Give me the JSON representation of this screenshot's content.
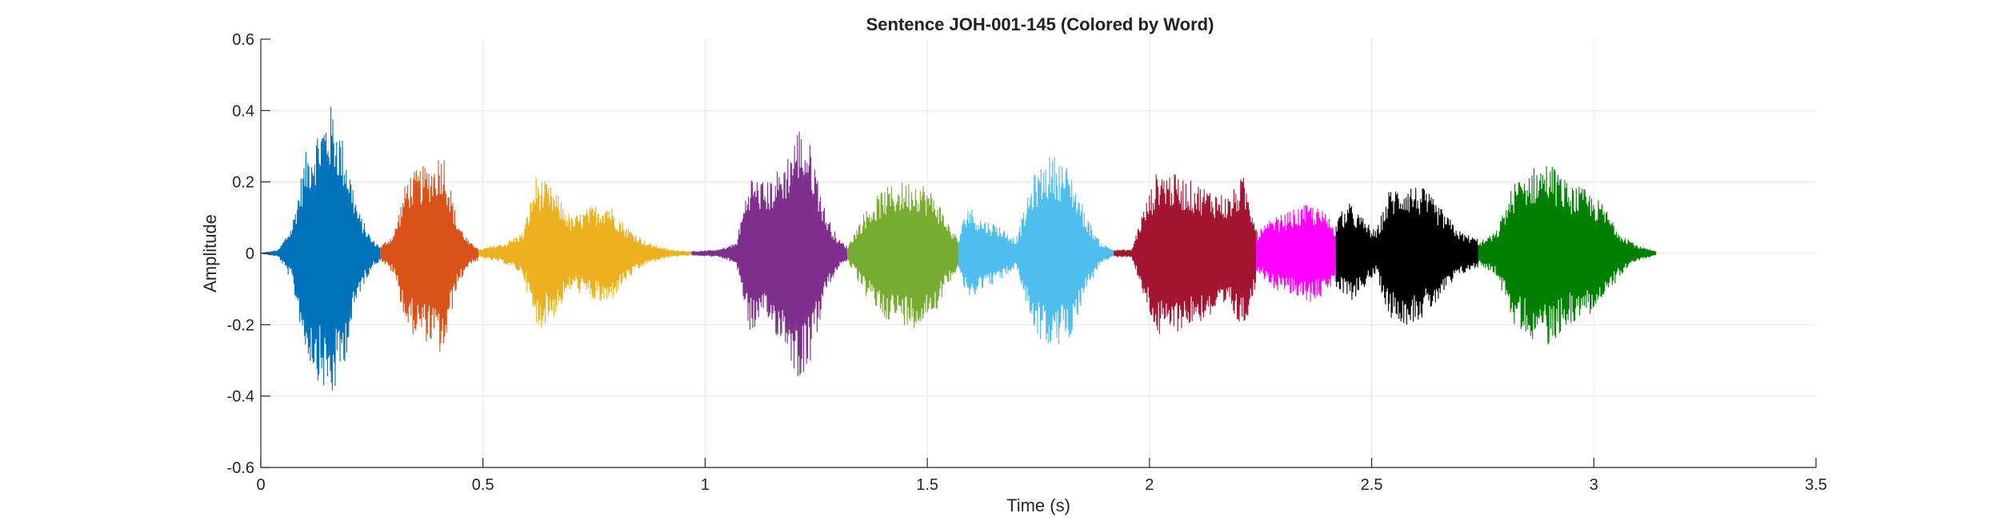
{
  "chart_data": {
    "type": "line",
    "title": "Sentence JOH-001-145 (Colored by Word)",
    "xlabel": "Time (s)",
    "ylabel": "Amplitude",
    "xlim": [
      0,
      3.5
    ],
    "ylim": [
      -0.6,
      0.6
    ],
    "x_ticks": [
      0,
      0.5,
      1,
      1.5,
      2,
      2.5,
      3,
      3.5
    ],
    "x_tick_labels": [
      "0",
      "0.5",
      "1",
      "1.5",
      "2",
      "2.5",
      "3",
      "3.5"
    ],
    "y_ticks": [
      -0.6,
      -0.4,
      -0.2,
      0,
      0.2,
      0.4,
      0.6
    ],
    "y_tick_labels": [
      "-0.6",
      "-0.4",
      "-0.2",
      "0",
      "0.2",
      "0.4",
      "0.6"
    ],
    "grid": true,
    "legend": false,
    "series": [
      {
        "color": "#0072BD",
        "start": 0.0,
        "end": 0.27,
        "envelope": [
          [
            0.0,
            0.0
          ],
          [
            0.04,
            0.01
          ],
          [
            0.07,
            0.08
          ],
          [
            0.1,
            0.28
          ],
          [
            0.13,
            0.36
          ],
          [
            0.16,
            0.42
          ],
          [
            0.19,
            0.3
          ],
          [
            0.22,
            0.12
          ],
          [
            0.25,
            0.04
          ],
          [
            0.27,
            0.02
          ]
        ]
      },
      {
        "color": "#D95319",
        "start": 0.27,
        "end": 0.49,
        "envelope": [
          [
            0.27,
            0.02
          ],
          [
            0.3,
            0.06
          ],
          [
            0.33,
            0.22
          ],
          [
            0.36,
            0.24
          ],
          [
            0.39,
            0.26
          ],
          [
            0.41,
            0.3
          ],
          [
            0.44,
            0.1
          ],
          [
            0.47,
            0.03
          ],
          [
            0.49,
            0.02
          ]
        ]
      },
      {
        "color": "#EDB120",
        "start": 0.49,
        "end": 0.97,
        "envelope": [
          [
            0.49,
            0.01
          ],
          [
            0.55,
            0.03
          ],
          [
            0.59,
            0.06
          ],
          [
            0.62,
            0.22
          ],
          [
            0.66,
            0.18
          ],
          [
            0.7,
            0.1
          ],
          [
            0.74,
            0.13
          ],
          [
            0.78,
            0.15
          ],
          [
            0.82,
            0.08
          ],
          [
            0.87,
            0.03
          ],
          [
            0.92,
            0.01
          ],
          [
            0.97,
            0.005
          ]
        ]
      },
      {
        "color": "#7E2F8E",
        "start": 0.97,
        "end": 1.32,
        "envelope": [
          [
            0.97,
            0.005
          ],
          [
            1.03,
            0.01
          ],
          [
            1.07,
            0.03
          ],
          [
            1.1,
            0.22
          ],
          [
            1.14,
            0.2
          ],
          [
            1.18,
            0.26
          ],
          [
            1.21,
            0.36
          ],
          [
            1.24,
            0.3
          ],
          [
            1.27,
            0.12
          ],
          [
            1.3,
            0.04
          ],
          [
            1.32,
            0.02
          ]
        ]
      },
      {
        "color": "#77AC30",
        "start": 1.32,
        "end": 1.57,
        "envelope": [
          [
            1.32,
            0.02
          ],
          [
            1.36,
            0.12
          ],
          [
            1.4,
            0.18
          ],
          [
            1.44,
            0.2
          ],
          [
            1.48,
            0.21
          ],
          [
            1.52,
            0.16
          ],
          [
            1.55,
            0.08
          ],
          [
            1.57,
            0.04
          ]
        ]
      },
      {
        "color": "#4DBEEE",
        "start": 1.57,
        "end": 1.92,
        "envelope": [
          [
            1.57,
            0.04
          ],
          [
            1.59,
            0.14
          ],
          [
            1.62,
            0.1
          ],
          [
            1.66,
            0.08
          ],
          [
            1.7,
            0.04
          ],
          [
            1.74,
            0.22
          ],
          [
            1.78,
            0.28
          ],
          [
            1.82,
            0.24
          ],
          [
            1.86,
            0.1
          ],
          [
            1.89,
            0.03
          ],
          [
            1.92,
            0.01
          ]
        ]
      },
      {
        "color": "#A2142F",
        "start": 1.92,
        "end": 2.24,
        "envelope": [
          [
            1.92,
            0.01
          ],
          [
            1.96,
            0.01
          ],
          [
            1.98,
            0.1
          ],
          [
            2.02,
            0.24
          ],
          [
            2.06,
            0.22
          ],
          [
            2.1,
            0.2
          ],
          [
            2.14,
            0.18
          ],
          [
            2.18,
            0.16
          ],
          [
            2.21,
            0.22
          ],
          [
            2.24,
            0.1
          ]
        ]
      },
      {
        "color": "#FF00FF",
        "start": 2.24,
        "end": 2.42,
        "envelope": [
          [
            2.24,
            0.06
          ],
          [
            2.28,
            0.1
          ],
          [
            2.32,
            0.12
          ],
          [
            2.36,
            0.14
          ],
          [
            2.39,
            0.12
          ],
          [
            2.42,
            0.08
          ]
        ]
      },
      {
        "color": "#000000",
        "start": 2.42,
        "end": 2.74,
        "envelope": [
          [
            2.42,
            0.1
          ],
          [
            2.45,
            0.14
          ],
          [
            2.48,
            0.1
          ],
          [
            2.51,
            0.06
          ],
          [
            2.54,
            0.18
          ],
          [
            2.58,
            0.2
          ],
          [
            2.62,
            0.18
          ],
          [
            2.66,
            0.12
          ],
          [
            2.7,
            0.06
          ],
          [
            2.74,
            0.04
          ]
        ]
      },
      {
        "color": "#008000",
        "start": 2.74,
        "end": 3.14,
        "envelope": [
          [
            2.74,
            0.03
          ],
          [
            2.78,
            0.06
          ],
          [
            2.82,
            0.2
          ],
          [
            2.86,
            0.24
          ],
          [
            2.9,
            0.26
          ],
          [
            2.94,
            0.2
          ],
          [
            2.98,
            0.18
          ],
          [
            3.02,
            0.14
          ],
          [
            3.06,
            0.06
          ],
          [
            3.1,
            0.02
          ],
          [
            3.14,
            0.005
          ]
        ]
      }
    ]
  }
}
